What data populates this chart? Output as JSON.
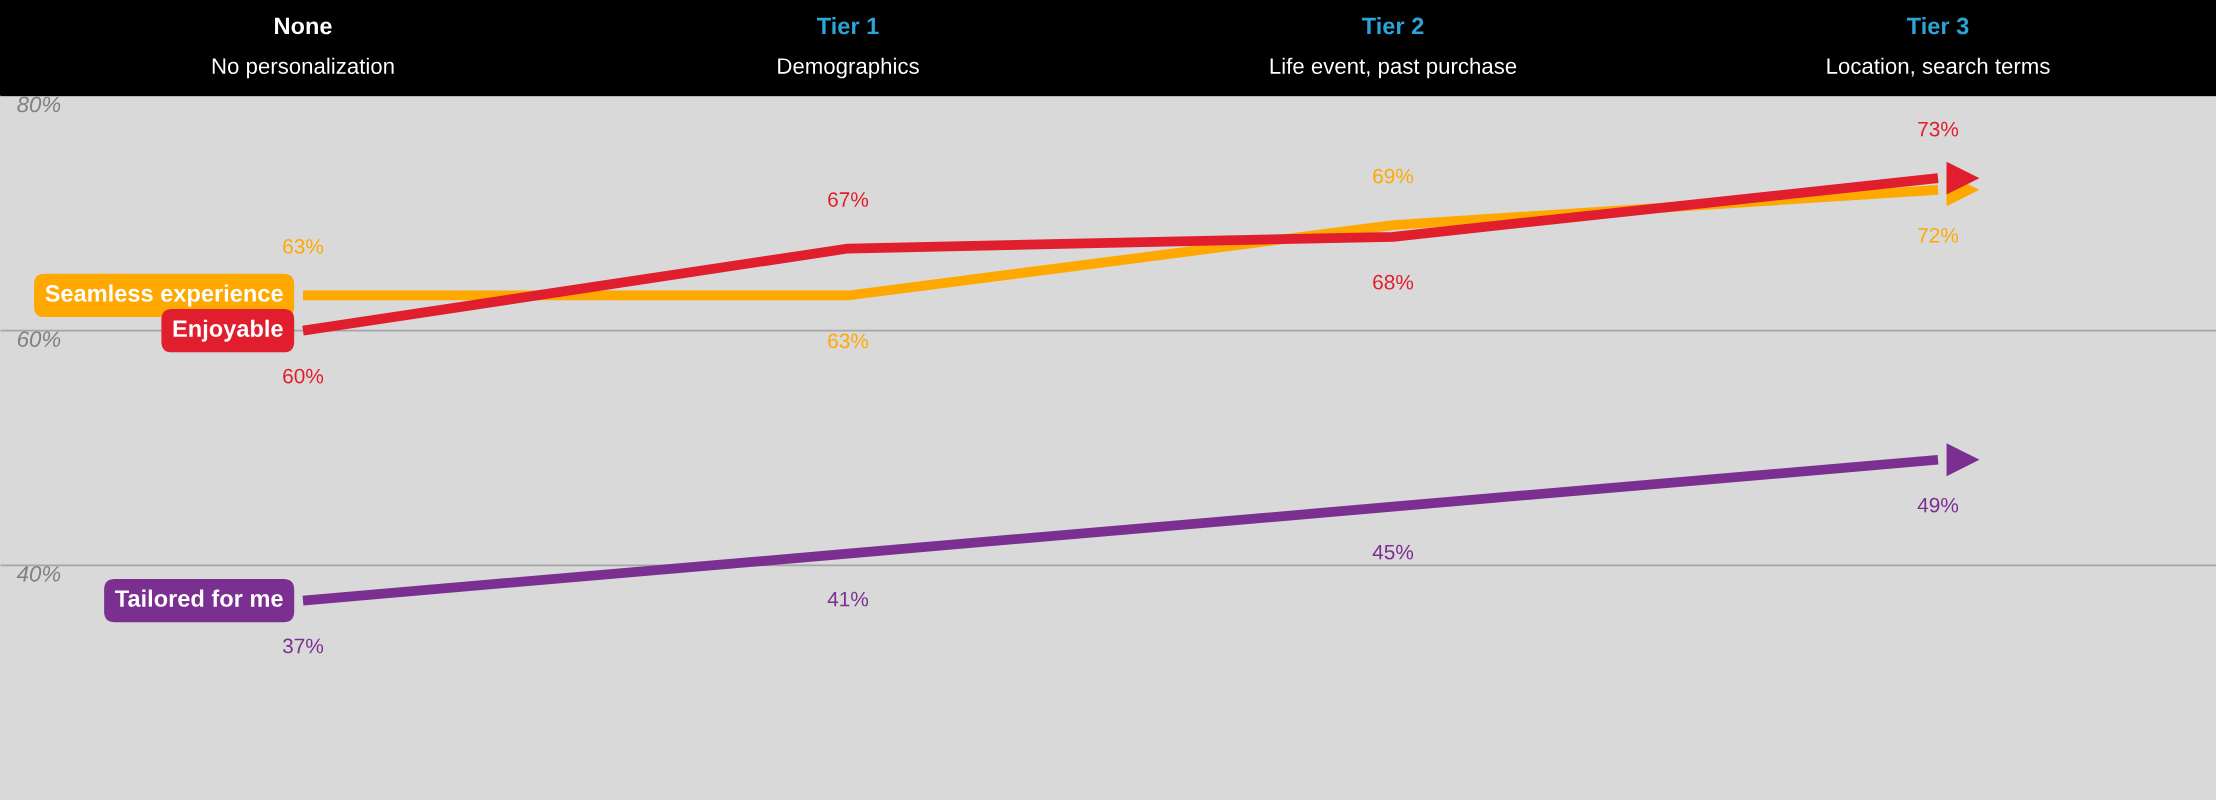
{
  "chart_data": {
    "type": "line",
    "categories": [
      "None\nNo personalization",
      "Tier 1\nDemographics",
      "Tier 2\nLife event, past purchase",
      "Tier 3\nLocation, search terms"
    ],
    "series": [
      {
        "name": "Seamless experience",
        "color": "#ffa800",
        "values": [
          63,
          63,
          69,
          72
        ],
        "value_labels": [
          "63%",
          "63%",
          "69%",
          "72%"
        ]
      },
      {
        "name": "Enjoyable",
        "color": "#e01e2d",
        "values": [
          60,
          67,
          68,
          73
        ],
        "value_labels": [
          "60%",
          "67%",
          "68%",
          "73%"
        ]
      },
      {
        "name": "Tailored for me",
        "color": "#7a2f91",
        "values": [
          37,
          41,
          45,
          49
        ],
        "value_labels": [
          "37%",
          "41%",
          "45%",
          "49%"
        ]
      }
    ],
    "ylim": [
      20,
      80
    ],
    "yticks": [
      {
        "value": 40,
        "label": "40%"
      },
      {
        "value": 60,
        "label": "60%"
      },
      {
        "value": 80,
        "label": "80%"
      }
    ],
    "grid": "y",
    "marker": "none",
    "line_style": "solid"
  }
}
